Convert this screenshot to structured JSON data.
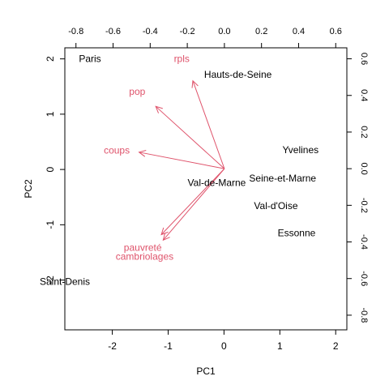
{
  "chart_data": {
    "type": "scatter",
    "title": "",
    "xlabel": "PC1",
    "ylabel": "PC2",
    "xlim": [
      -2.85,
      2.2
    ],
    "ylim": [
      -2.9,
      2.2
    ],
    "xticks": [
      -2,
      -1,
      0,
      1,
      2
    ],
    "yticks": [
      -2,
      -1,
      0,
      1,
      2
    ],
    "x2lim": [
      -0.86,
      0.66
    ],
    "y2lim": [
      -0.88,
      0.66
    ],
    "x2ticks": [
      -0.8,
      -0.6,
      -0.4,
      -0.2,
      0.0,
      0.2,
      0.4,
      0.6
    ],
    "y2ticks": [
      -0.8,
      -0.6,
      -0.4,
      -0.2,
      0.0,
      0.2,
      0.4,
      0.6
    ],
    "observations": [
      {
        "label": "Paris",
        "x": -2.4,
        "y": 2.0
      },
      {
        "label": "Hauts-de-Seine",
        "x": 0.25,
        "y": 1.72
      },
      {
        "label": "Yvelines",
        "x": 1.37,
        "y": 0.35
      },
      {
        "label": "Seine-et-Marne",
        "x": 1.05,
        "y": -0.16
      },
      {
        "label": "Val-de-Marne",
        "x": -0.13,
        "y": -0.24
      },
      {
        "label": "Val-d'Oise",
        "x": 0.93,
        "y": -0.66
      },
      {
        "label": "Essonne",
        "x": 1.3,
        "y": -1.15
      },
      {
        "label": "Saint-Denis",
        "x": -2.85,
        "y": -2.03
      }
    ],
    "variables": [
      {
        "label": "rpls",
        "x": -0.17,
        "y": 0.48,
        "lx": -0.23,
        "ly": 0.6
      },
      {
        "label": "pop",
        "x": -0.37,
        "y": 0.34,
        "lx": -0.47,
        "ly": 0.42
      },
      {
        "label": "coups",
        "x": -0.46,
        "y": 0.09,
        "lx": -0.58,
        "ly": 0.1
      },
      {
        "label": "pauvreté",
        "x": -0.34,
        "y": -0.36,
        "lx": -0.44,
        "ly": -0.43
      },
      {
        "label": "cambriolages",
        "x": -0.33,
        "y": -0.39,
        "lx": -0.43,
        "ly": -0.48
      }
    ],
    "colors": {
      "variables": "#DF536B",
      "observations": "#000000"
    }
  }
}
